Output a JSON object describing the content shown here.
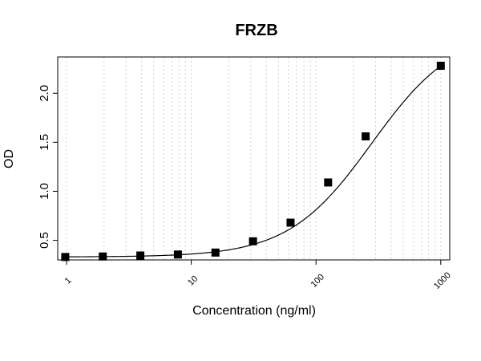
{
  "chart_data": {
    "type": "scatter",
    "title": "FRZB",
    "xlabel": "Concentration (ng/ml)",
    "ylabel": "OD",
    "x_scale": "log",
    "xlim": [
      0.85,
      1180
    ],
    "ylim": [
      0.3,
      2.37
    ],
    "x_ticks": [
      1,
      10,
      100,
      1000
    ],
    "x_tick_labels": [
      "1",
      "10",
      "100",
      "1000"
    ],
    "y_ticks": [
      0.5,
      1.0,
      1.5,
      2.0
    ],
    "y_tick_labels": [
      "0.5",
      "1.0",
      "1.5",
      "2.0"
    ],
    "grid": "vertical dotted at log minor ticks",
    "series": [
      {
        "marker": "square",
        "x": [
          0.977,
          1.953,
          3.906,
          7.8125,
          15.625,
          31.25,
          62.5,
          125,
          250,
          1000
        ],
        "y": [
          0.33,
          0.335,
          0.345,
          0.355,
          0.375,
          0.49,
          0.68,
          1.09,
          1.56,
          2.28
        ]
      }
    ],
    "fit_curve": {
      "type": "4PL",
      "bottom": 0.33,
      "top": 2.65,
      "ec50": 280,
      "hill": 1.3
    }
  }
}
